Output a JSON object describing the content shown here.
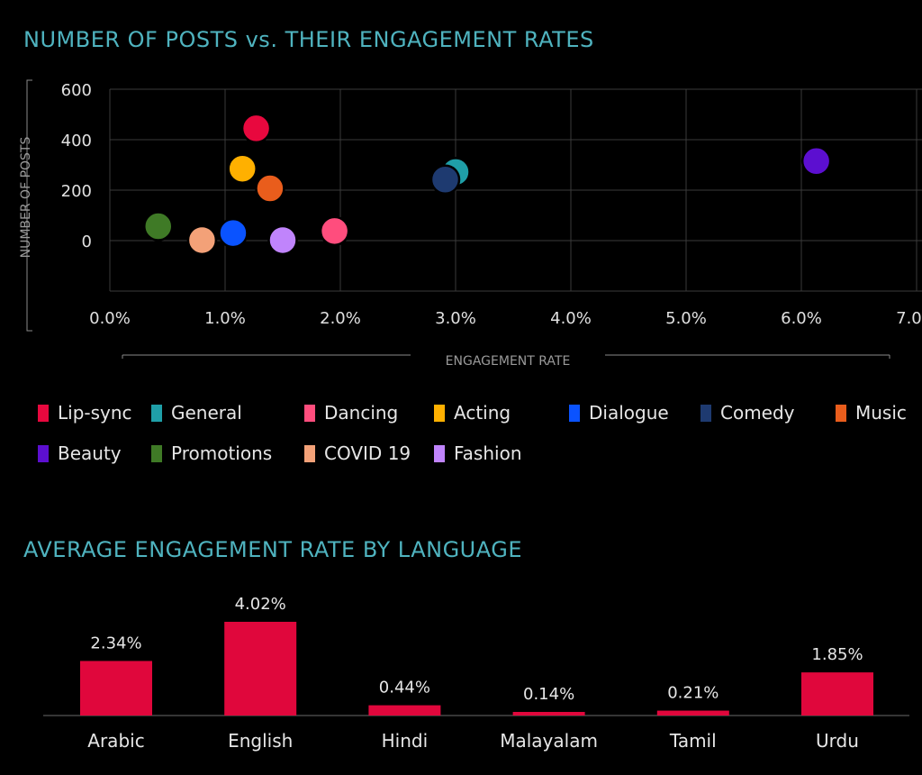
{
  "chart_data": [
    {
      "type": "scatter",
      "title": "NUMBER OF POSTS vs. THEIR ENGAGEMENT RATES",
      "xlabel": "ENGAGEMENT RATE",
      "ylabel": "NUMBER OF POSTS",
      "xlim": [
        0,
        7
      ],
      "ylim": [
        -200,
        600
      ],
      "grid": true,
      "x_ticks": [
        "0.0%",
        "1.0%",
        "2.0%",
        "3.0%",
        "4.0%",
        "5.0%",
        "6.0%",
        "7.0%"
      ],
      "y_ticks": [
        "0",
        "200",
        "400",
        "600"
      ],
      "series": [
        {
          "name": "Lip-sync",
          "color": "#e8083e",
          "x": [
            1.27
          ],
          "y": [
            445
          ]
        },
        {
          "name": "General",
          "color": "#1f9fa8",
          "x": [
            3.0
          ],
          "y": [
            272
          ]
        },
        {
          "name": "Dancing",
          "color": "#ff4d7d",
          "x": [
            1.95
          ],
          "y": [
            38
          ]
        },
        {
          "name": "Acting",
          "color": "#ffb000",
          "x": [
            1.15
          ],
          "y": [
            285
          ]
        },
        {
          "name": "Dialogue",
          "color": "#0a53ff",
          "x": [
            1.07
          ],
          "y": [
            30
          ]
        },
        {
          "name": "Comedy",
          "color": "#1e3a70",
          "x": [
            2.91
          ],
          "y": [
            242
          ]
        },
        {
          "name": "Music",
          "color": "#e95d1c",
          "x": [
            1.39
          ],
          "y": [
            207
          ]
        },
        {
          "name": "Beauty",
          "color": "#5c0fd0",
          "x": [
            6.13
          ],
          "y": [
            315
          ]
        },
        {
          "name": "Promotions",
          "color": "#3f7a26",
          "x": [
            0.42
          ],
          "y": [
            57
          ]
        },
        {
          "name": "COVID 19",
          "color": "#f3a178",
          "x": [
            0.8
          ],
          "y": [
            2
          ]
        },
        {
          "name": "Fashion",
          "color": "#c084fc",
          "x": [
            1.5
          ],
          "y": [
            2
          ]
        }
      ]
    },
    {
      "type": "bar",
      "title": "AVERAGE ENGAGEMENT RATE BY LANGUAGE",
      "categories": [
        "Arabic",
        "English",
        "Hindi",
        "Malayalam",
        "Tamil",
        "Urdu"
      ],
      "values": [
        2.34,
        4.02,
        0.44,
        0.14,
        0.21,
        1.85
      ],
      "labels": [
        "2.34%",
        "4.02%",
        "0.44%",
        "0.14%",
        "0.21%",
        "1.85%"
      ],
      "color": "#e0073c",
      "ylim": [
        0,
        4.02
      ]
    }
  ]
}
